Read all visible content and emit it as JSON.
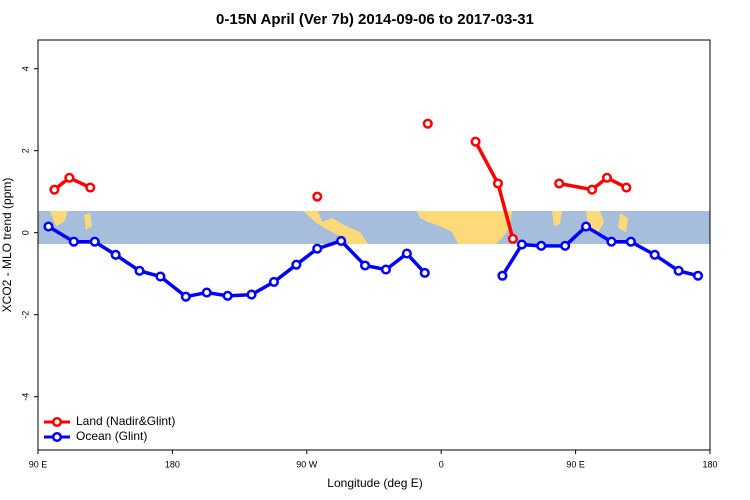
{
  "chart_data": {
    "type": "line",
    "title": "0-15N April (Ver 7b)   2014-09-06 to 2017-03-31",
    "xlabel": "Longitude (deg E)",
    "ylabel": "XCO2 - MLO trend (ppm)",
    "xlim": [
      90,
      540
    ],
    "ylim": [
      -5.3,
      4.7
    ],
    "xticks": [
      {
        "value": 90,
        "label": "90 E"
      },
      180,
      {
        "value": 270,
        "label": "90 W"
      },
      {
        "value": 360,
        "label": "0"
      },
      {
        "value": 450,
        "label": "90 E"
      },
      {
        "value": 540,
        "label": "180"
      }
    ],
    "yticks": [
      -4,
      -2,
      0,
      2,
      4
    ],
    "legend": "bottom-left",
    "series": [
      {
        "name": "Land (Nadir&Glint)",
        "color": "#ff0000",
        "x": [
          101,
          111,
          125,
          null,
          277,
          null,
          351,
          null,
          383,
          398,
          408,
          null,
          439,
          461,
          471,
          484
        ],
        "values": [
          1.05,
          1.34,
          1.1,
          null,
          0.88,
          null,
          2.66,
          null,
          2.22,
          1.2,
          -0.15,
          null,
          1.2,
          1.05,
          1.34,
          1.1
        ]
      },
      {
        "name": "Ocean (Glint)",
        "color": "#0000ff",
        "x": [
          97,
          114,
          128,
          142,
          158,
          172,
          189,
          203,
          217,
          233,
          248,
          263,
          277,
          293,
          309,
          323,
          337,
          349,
          null,
          401,
          414,
          427,
          443,
          457,
          474,
          487,
          503,
          519,
          532
        ],
        "values": [
          0.15,
          -0.22,
          -0.22,
          -0.54,
          -0.93,
          -1.07,
          -1.56,
          -1.46,
          -1.54,
          -1.51,
          -1.2,
          -0.78,
          -0.39,
          -0.2,
          -0.8,
          -0.9,
          -0.51,
          -0.98,
          null,
          -1.05,
          -0.29,
          -0.32,
          -0.32,
          0.15,
          -0.22,
          -0.22,
          -0.54,
          -0.93,
          -1.05
        ]
      }
    ]
  }
}
